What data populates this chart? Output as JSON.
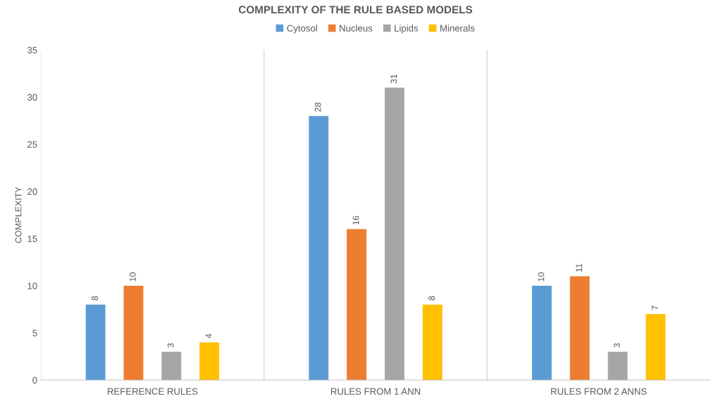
{
  "chart_data": {
    "type": "bar",
    "title": "COMPLEXITY OF THE RULE BASED MODELS",
    "ylabel": "COMPLEXITY",
    "categories": [
      "REFERENCE RULES",
      "RULES FROM 1 ANN",
      "RULES FROM 2 ANNS"
    ],
    "series": [
      {
        "name": "Cytosol",
        "color": "#5b9bd5",
        "values": [
          8,
          28,
          10
        ]
      },
      {
        "name": "Nucleus",
        "color": "#ed7d31",
        "values": [
          10,
          16,
          11
        ]
      },
      {
        "name": "Lipids",
        "color": "#a5a5a5",
        "values": [
          3,
          31,
          3
        ]
      },
      {
        "name": "Minerals",
        "color": "#ffc000",
        "values": [
          4,
          8,
          7
        ]
      }
    ],
    "ylim": [
      0,
      35
    ],
    "yticks": [
      0,
      5,
      10,
      15,
      20,
      25,
      30,
      35
    ],
    "grid": "x",
    "legend": "top",
    "data_labels": true
  }
}
